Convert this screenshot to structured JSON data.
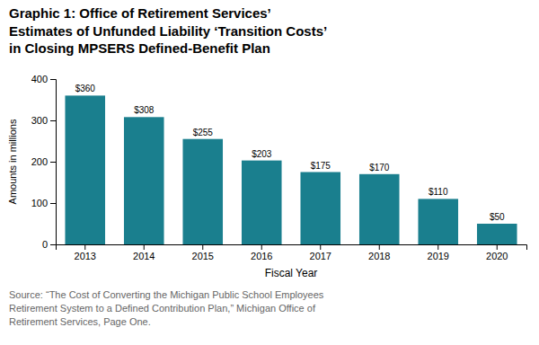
{
  "chart_data": {
    "type": "bar",
    "title": "Graphic 1: Office of Retirement Services’\nEstimates of Unfunded Liability ‘Transition Costs’\nin Closing MPSERS Defined-Benefit Plan",
    "categories": [
      "2013",
      "2014",
      "2015",
      "2016",
      "2017",
      "2018",
      "2019",
      "2020"
    ],
    "values": [
      360,
      308,
      255,
      203,
      175,
      170,
      110,
      50
    ],
    "value_labels": [
      "$360",
      "$308",
      "$255",
      "$203",
      "$175",
      "$170",
      "$110",
      "$50"
    ],
    "data_labels": true,
    "color": "#1a7f8e",
    "xlabel": "Fiscal Year",
    "ylabel": "Amounts in millions",
    "ylim": [
      0,
      400
    ],
    "yticks": [
      0,
      100,
      200,
      300,
      400
    ],
    "grid": false,
    "annotations": [
      "Source: “The Cost of Converting the Michigan Public School Employees\nRetirement System to a Defined Contribution Plan,” Michigan Office of\nRetirement Services, Page One."
    ]
  }
}
